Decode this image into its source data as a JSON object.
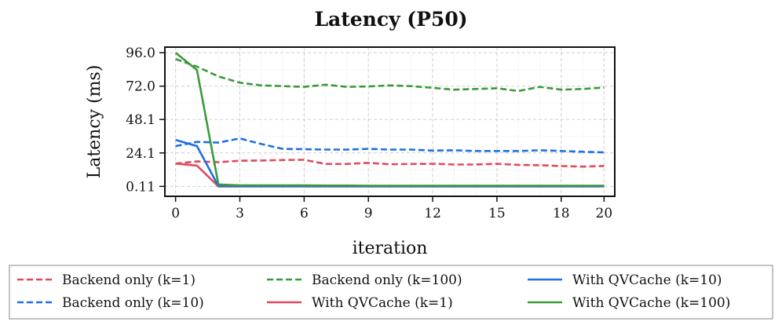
{
  "chart_data": {
    "type": "line",
    "title": "Latency (P50)",
    "xlabel": "iteration",
    "ylabel": "Latency (ms)",
    "xlim": [
      -0.5,
      20.5
    ],
    "ylim": [
      -7,
      100
    ],
    "xticks": [
      0,
      3,
      6,
      9,
      12,
      15,
      18,
      20
    ],
    "xtick_labels": [
      "0",
      "3",
      "6",
      "9",
      "12",
      "15",
      "18",
      "20"
    ],
    "yticks": [
      0.11,
      24.1,
      48.1,
      72.0,
      96.0
    ],
    "ytick_labels": [
      "0.11",
      "24.1",
      "48.1",
      "72.0",
      "96.0"
    ],
    "grid": true,
    "legend_position": "bottom",
    "x": [
      0,
      1,
      2,
      3,
      4,
      5,
      6,
      7,
      8,
      9,
      10,
      11,
      12,
      13,
      14,
      15,
      16,
      17,
      18,
      19,
      20
    ],
    "series": [
      {
        "name": "Backend only (k=1)",
        "color": "#e04a5a",
        "style": "dashed",
        "values": [
          16.5,
          18.0,
          17.5,
          18.5,
          18.7,
          19.0,
          19.2,
          16.2,
          16.2,
          17.0,
          16.0,
          16.2,
          16.3,
          15.8,
          15.8,
          16.3,
          15.5,
          15.3,
          14.7,
          14.3,
          14.8
        ]
      },
      {
        "name": "Backend only (k=10)",
        "color": "#1f6fe8",
        "style": "dashed",
        "values": [
          29.0,
          32.0,
          31.5,
          34.5,
          30.5,
          27.0,
          26.8,
          26.5,
          26.5,
          27.0,
          26.5,
          26.5,
          25.8,
          26.0,
          25.5,
          25.5,
          25.5,
          26.0,
          25.5,
          25.0,
          24.5
        ]
      },
      {
        "name": "Backend only (k=100)",
        "color": "#3a9a3a",
        "style": "dashed",
        "values": [
          91.5,
          86.0,
          79.0,
          74.5,
          72.5,
          72.0,
          71.5,
          73.0,
          71.5,
          71.8,
          72.5,
          72.0,
          70.8,
          69.5,
          70.0,
          70.5,
          68.5,
          71.5,
          69.5,
          70.0,
          71.0
        ]
      },
      {
        "name": "With QVCache (k=1)",
        "color": "#e04a5a",
        "style": "solid",
        "values": [
          16.5,
          15.0,
          0.11,
          0.11,
          0.11,
          0.11,
          0.11,
          0.11,
          0.11,
          0.11,
          0.11,
          0.11,
          0.11,
          0.11,
          0.11,
          0.11,
          0.11,
          0.11,
          0.11,
          0.11,
          0.11
        ]
      },
      {
        "name": "With QVCache (k=10)",
        "color": "#1f6fe8",
        "style": "solid",
        "values": [
          33.5,
          29.0,
          0.3,
          0.2,
          0.2,
          0.2,
          0.2,
          0.2,
          0.2,
          0.2,
          0.2,
          0.2,
          0.2,
          0.2,
          0.2,
          0.2,
          0.2,
          0.2,
          0.2,
          0.2,
          0.2
        ]
      },
      {
        "name": "With QVCache (k=100)",
        "color": "#3a9a3a",
        "style": "solid",
        "values": [
          96.0,
          83.5,
          1.5,
          0.8,
          0.8,
          0.8,
          0.8,
          0.7,
          0.7,
          0.6,
          0.6,
          0.6,
          0.6,
          0.6,
          0.6,
          0.6,
          0.6,
          0.6,
          0.6,
          0.6,
          0.6
        ]
      }
    ]
  }
}
